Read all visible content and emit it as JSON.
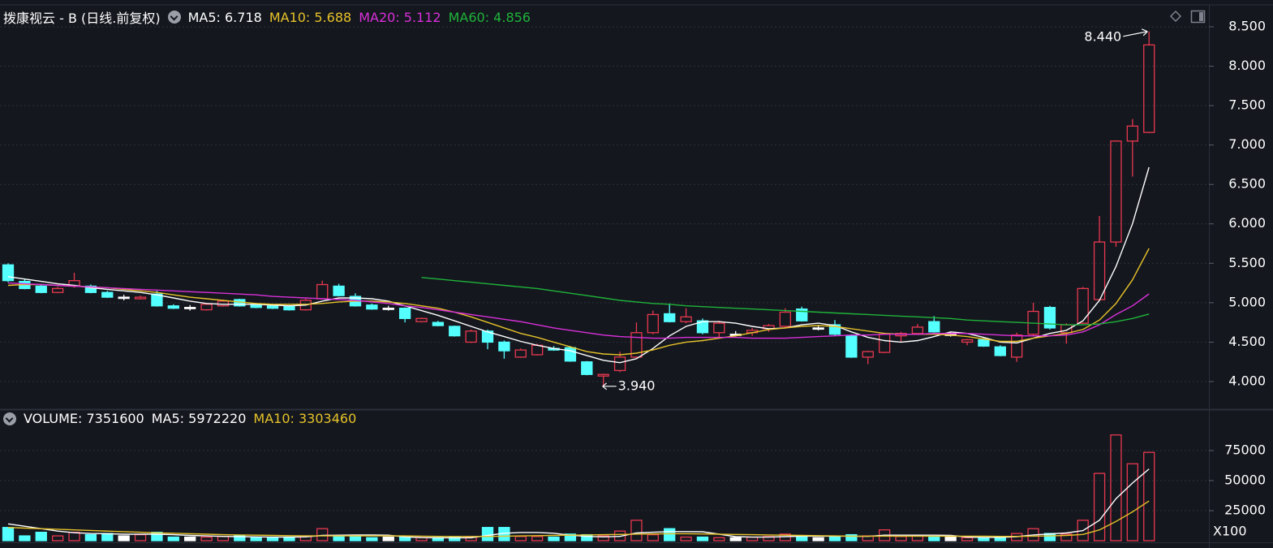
{
  "chart_data": {
    "type": "candlestick",
    "title": "拨康视云 - B (日线.前复权)",
    "ma_labels": [
      {
        "text": "MA5: 6.718",
        "color": "#ffffff"
      },
      {
        "text": "MA10: 5.688",
        "color": "#e6c229"
      },
      {
        "text": "MA20: 5.112",
        "color": "#d930d9"
      },
      {
        "text": "MA60: 4.856",
        "color": "#1fb33a"
      }
    ],
    "up_color": "#e8384f",
    "down_color": "#54ffff",
    "flat_color": "#ffffff",
    "open": [
      5.48,
      5.27,
      5.21,
      5.13,
      5.21,
      5.21,
      5.13,
      5.07,
      5.05,
      5.11,
      4.96,
      4.94,
      4.91,
      4.96,
      5.04,
      4.97,
      4.96,
      4.95,
      4.91,
      5.05,
      5.21,
      5.08,
      4.97,
      4.93,
      4.93,
      4.76,
      4.75,
      4.7,
      4.5,
      4.64,
      4.5,
      4.31,
      4.34,
      4.42,
      4.43,
      4.25,
      4.07,
      4.14,
      4.31,
      4.62,
      4.86,
      4.76,
      4.77,
      4.62,
      4.6,
      4.62,
      4.67,
      4.7,
      4.92,
      4.68,
      4.72,
      4.58,
      4.31,
      4.37,
      4.58,
      4.61,
      4.76,
      4.6,
      4.5,
      4.53,
      4.44,
      4.31,
      4.6,
      4.94,
      4.62,
      4.74,
      5.04,
      5.77,
      7.05,
      7.16
    ],
    "high": [
      5.5,
      5.3,
      5.23,
      5.2,
      5.38,
      5.23,
      5.15,
      5.1,
      5.09,
      5.15,
      4.98,
      4.97,
      4.99,
      5.04,
      5.05,
      4.99,
      4.98,
      4.97,
      5.05,
      5.28,
      5.24,
      5.12,
      4.99,
      4.96,
      4.94,
      4.81,
      4.77,
      4.71,
      4.66,
      4.66,
      4.52,
      4.42,
      4.48,
      4.45,
      4.45,
      4.26,
      4.1,
      4.38,
      4.75,
      4.9,
      4.99,
      4.93,
      4.8,
      4.77,
      4.64,
      4.68,
      4.73,
      4.93,
      4.95,
      4.72,
      4.78,
      4.6,
      4.39,
      4.62,
      4.63,
      4.73,
      4.83,
      4.63,
      4.54,
      4.55,
      4.46,
      4.62,
      5.0,
      4.96,
      4.74,
      5.2,
      6.1,
      7.06,
      7.33,
      8.44
    ],
    "low": [
      5.26,
      5.17,
      5.12,
      5.12,
      5.19,
      5.12,
      5.06,
      5.03,
      5.04,
      4.95,
      4.92,
      4.9,
      4.9,
      4.95,
      4.95,
      4.93,
      4.92,
      4.9,
      4.9,
      5.04,
      5.08,
      4.95,
      4.91,
      4.9,
      4.75,
      4.75,
      4.7,
      4.57,
      4.49,
      4.41,
      4.29,
      4.3,
      4.33,
      4.39,
      4.25,
      4.08,
      3.94,
      4.12,
      4.3,
      4.6,
      4.75,
      4.74,
      4.6,
      4.55,
      4.57,
      4.58,
      4.63,
      4.68,
      4.76,
      4.65,
      4.58,
      4.3,
      4.22,
      4.36,
      4.5,
      4.6,
      4.62,
      4.57,
      4.46,
      4.44,
      4.32,
      4.25,
      4.58,
      4.66,
      4.48,
      4.73,
      5.03,
      5.71,
      6.6,
      7.15
    ],
    "close": [
      5.28,
      5.18,
      5.13,
      5.18,
      5.28,
      5.13,
      5.07,
      5.07,
      5.07,
      4.96,
      4.93,
      4.94,
      4.98,
      5.02,
      4.96,
      4.94,
      4.93,
      4.91,
      5.03,
      5.23,
      5.09,
      4.96,
      4.92,
      4.93,
      4.8,
      4.8,
      4.71,
      4.58,
      4.64,
      4.5,
      4.39,
      4.4,
      4.46,
      4.4,
      4.26,
      4.09,
      4.09,
      4.31,
      4.62,
      4.85,
      4.76,
      4.82,
      4.62,
      4.74,
      4.6,
      4.65,
      4.71,
      4.88,
      4.77,
      4.68,
      4.6,
      4.31,
      4.38,
      4.6,
      4.61,
      4.69,
      4.63,
      4.6,
      4.53,
      4.45,
      4.33,
      4.59,
      4.89,
      4.68,
      4.72,
      5.18,
      5.77,
      7.05,
      7.24,
      8.27
    ],
    "series": [
      {
        "name": "MA5",
        "color": "#ffffff",
        "values": [
          5.33,
          5.3,
          5.27,
          5.24,
          5.22,
          5.19,
          5.17,
          5.15,
          5.13,
          5.1,
          5.06,
          5.02,
          4.99,
          4.98,
          4.98,
          4.98,
          4.97,
          4.96,
          4.97,
          5.02,
          5.06,
          5.06,
          5.05,
          5.02,
          4.96,
          4.9,
          4.84,
          4.77,
          4.7,
          4.63,
          4.57,
          4.51,
          4.46,
          4.42,
          4.39,
          4.33,
          4.27,
          4.24,
          4.29,
          4.42,
          4.58,
          4.7,
          4.76,
          4.76,
          4.74,
          4.7,
          4.67,
          4.68,
          4.72,
          4.74,
          4.71,
          4.63,
          4.56,
          4.52,
          4.5,
          4.52,
          4.57,
          4.63,
          4.61,
          4.56,
          4.5,
          4.49,
          4.55,
          4.61,
          4.65,
          4.77,
          5.03,
          5.46,
          6.0,
          6.718
        ]
      },
      {
        "name": "MA10",
        "color": "#e6c229",
        "values": [
          5.22,
          5.23,
          5.23,
          5.22,
          5.21,
          5.2,
          5.19,
          5.17,
          5.15,
          5.13,
          5.1,
          5.07,
          5.05,
          5.03,
          5.01,
          4.99,
          4.98,
          4.98,
          4.98,
          4.99,
          5.01,
          5.02,
          5.02,
          5.01,
          4.99,
          4.96,
          4.93,
          4.88,
          4.82,
          4.75,
          4.68,
          4.61,
          4.56,
          4.5,
          4.44,
          4.38,
          4.35,
          4.34,
          4.36,
          4.4,
          4.46,
          4.5,
          4.52,
          4.55,
          4.58,
          4.62,
          4.66,
          4.68,
          4.7,
          4.71,
          4.7,
          4.67,
          4.64,
          4.61,
          4.6,
          4.6,
          4.6,
          4.59,
          4.57,
          4.54,
          4.51,
          4.51,
          4.55,
          4.58,
          4.61,
          4.66,
          4.78,
          4.99,
          5.29,
          5.688
        ]
      },
      {
        "name": "MA20",
        "color": "#d930d9",
        "values": [
          5.25,
          5.24,
          5.23,
          5.22,
          5.21,
          5.2,
          5.19,
          5.18,
          5.17,
          5.16,
          5.15,
          5.14,
          5.13,
          5.12,
          5.11,
          5.1,
          5.08,
          5.07,
          5.06,
          5.05,
          5.04,
          5.03,
          5.01,
          4.99,
          4.96,
          4.94,
          4.91,
          4.88,
          4.85,
          4.82,
          4.79,
          4.76,
          4.72,
          4.68,
          4.65,
          4.62,
          4.59,
          4.57,
          4.56,
          4.55,
          4.55,
          4.56,
          4.56,
          4.56,
          4.56,
          4.55,
          4.55,
          4.55,
          4.56,
          4.57,
          4.58,
          4.59,
          4.59,
          4.6,
          4.6,
          4.6,
          4.61,
          4.61,
          4.61,
          4.6,
          4.59,
          4.58,
          4.58,
          4.58,
          4.59,
          4.63,
          4.72,
          4.85,
          4.96,
          5.112
        ]
      },
      {
        "name": "MA60",
        "color": "#1fb33a",
        "values": [
          null,
          null,
          null,
          null,
          null,
          null,
          null,
          null,
          null,
          null,
          null,
          null,
          null,
          null,
          null,
          null,
          null,
          null,
          null,
          null,
          null,
          null,
          null,
          null,
          null,
          5.32,
          5.3,
          5.28,
          5.26,
          5.24,
          5.22,
          5.2,
          5.18,
          5.15,
          5.12,
          5.09,
          5.06,
          5.03,
          5.01,
          4.99,
          4.98,
          4.96,
          4.95,
          4.94,
          4.93,
          4.92,
          4.91,
          4.9,
          4.89,
          4.88,
          4.87,
          4.86,
          4.85,
          4.84,
          4.83,
          4.82,
          4.81,
          4.8,
          4.78,
          4.77,
          4.76,
          4.75,
          4.74,
          4.73,
          4.72,
          4.72,
          4.73,
          4.76,
          4.8,
          4.856
        ]
      }
    ],
    "ylim": [
      3.66,
      8.757
    ],
    "yticks": [
      {
        "value": 4,
        "label": "4.000"
      },
      {
        "value": 4.5,
        "label": "4.500"
      },
      {
        "value": 5,
        "label": "5.000"
      },
      {
        "value": 5.5,
        "label": "5.500"
      },
      {
        "value": 6,
        "label": "6.000"
      },
      {
        "value": 6.5,
        "label": "6.500"
      },
      {
        "value": 7,
        "label": "7.000"
      },
      {
        "value": 7.5,
        "label": "7.500"
      },
      {
        "value": 8,
        "label": "8.000"
      },
      {
        "value": 8.5,
        "label": "8.500"
      }
    ],
    "grid": true,
    "annotations": [
      {
        "index": 69,
        "value": 8.44,
        "label": "8.440",
        "side": "left"
      },
      {
        "index": 36,
        "value": 3.94,
        "label": "3.940",
        "side": "right"
      }
    ],
    "volume": {
      "labels": [
        {
          "text": "VOLUME: 7351600",
          "color": "#ffffff"
        },
        {
          "text": "MA5: 5972220",
          "color": "#ffffff"
        },
        {
          "text": "MA10: 3303460",
          "color": "#e6c229"
        }
      ],
      "unit_label": "X100",
      "values": [
        11000,
        4000,
        7000,
        4000,
        7000,
        5000,
        6000,
        4000,
        5000,
        7000,
        3000,
        3000,
        3000,
        3500,
        4000,
        2500,
        2500,
        3000,
        4000,
        10000,
        3500,
        4000,
        2500,
        3000,
        3000,
        2500,
        2500,
        3000,
        3000,
        11000,
        11000,
        3500,
        3500,
        3000,
        5500,
        5000,
        4000,
        8000,
        17000,
        5000,
        10000,
        3000,
        3000,
        2500,
        2500,
        3000,
        3500,
        5500,
        4000,
        2500,
        3500,
        5000,
        4000,
        9000,
        3500,
        4000,
        3000,
        3000,
        2500,
        2500,
        3000,
        6000,
        10000,
        6000,
        5500,
        17000,
        56000,
        88000,
        64000,
        73516
      ],
      "series": [
        {
          "name": "MA5",
          "color": "#ffffff",
          "values": [
            14000,
            12000,
            10000,
            8000,
            6600,
            6000,
            5800,
            5400,
            5400,
            5400,
            5000,
            4400,
            4000,
            3600,
            3400,
            3200,
            3000,
            3000,
            3200,
            4400,
            4600,
            4800,
            4800,
            4600,
            3200,
            2600,
            2400,
            2400,
            2400,
            4400,
            6200,
            6800,
            6800,
            6200,
            4600,
            3600,
            3200,
            3600,
            6400,
            7000,
            7600,
            7600,
            7400,
            5400,
            3400,
            3000,
            3000,
            3400,
            3800,
            3800,
            3800,
            3800,
            3600,
            4600,
            4600,
            4600,
            4600,
            4400,
            3000,
            2800,
            2800,
            3400,
            4800,
            5600,
            6400,
            8400,
            17000,
            35000,
            48000,
            59722
          ]
        },
        {
          "name": "MA10",
          "color": "#e6c229",
          "values": [
            11000,
            10500,
            10000,
            9500,
            9000,
            8500,
            8000,
            7500,
            7000,
            6500,
            6200,
            5800,
            5400,
            5000,
            4800,
            4600,
            4400,
            4200,
            4000,
            4000,
            4000,
            4000,
            4000,
            4000,
            4000,
            3800,
            3600,
            3500,
            3500,
            3500,
            3800,
            4000,
            4200,
            4400,
            4600,
            4800,
            5000,
            5200,
            5500,
            5600,
            5800,
            5800,
            5600,
            5400,
            5200,
            5000,
            4800,
            4600,
            4400,
            4200,
            4000,
            3800,
            3800,
            3800,
            3800,
            3800,
            3800,
            3800,
            3800,
            3800,
            3600,
            3600,
            3800,
            4000,
            4400,
            5200,
            9000,
            16000,
            24000,
            33035
          ]
        }
      ],
      "ylim": [
        0,
        108100
      ],
      "yticks": [
        25000,
        50000,
        75000
      ]
    }
  }
}
